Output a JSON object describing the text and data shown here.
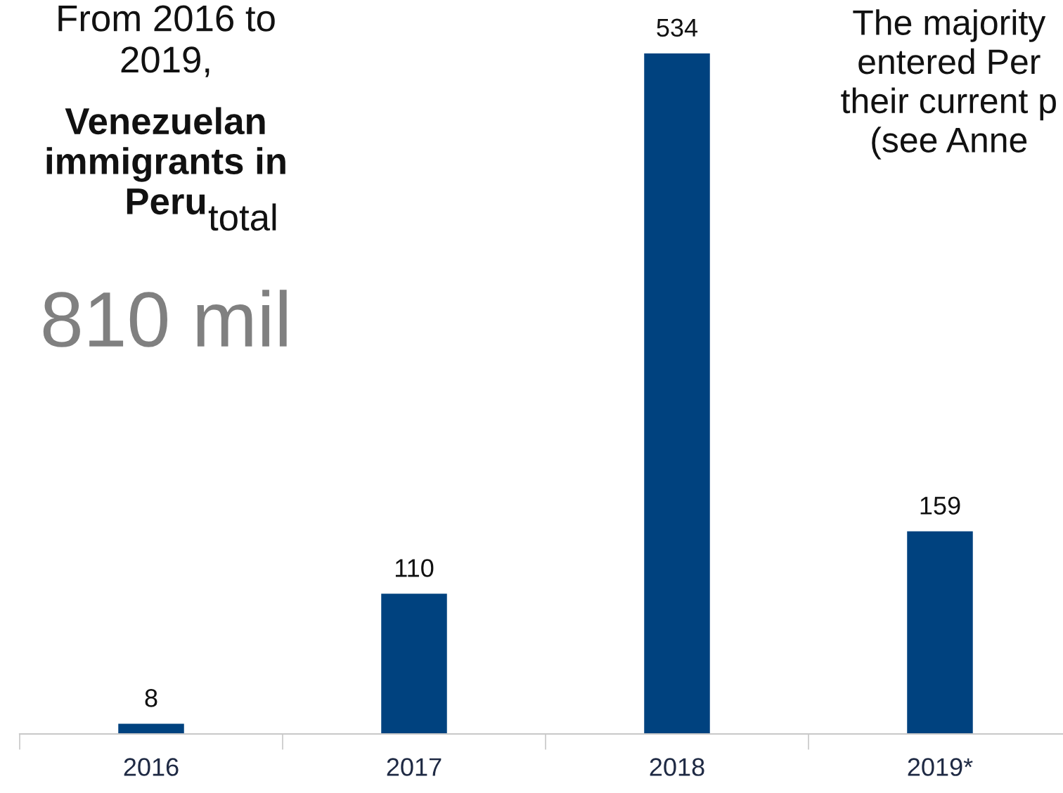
{
  "chart_data": {
    "type": "bar",
    "categories": [
      "2016",
      "2017",
      "2018",
      "2019*"
    ],
    "values": [
      8,
      110,
      534,
      159
    ],
    "color": "#00427f",
    "data_labels": true,
    "grid": false,
    "legend": false,
    "tick_labels": "x",
    "annotations": [
      "From 2016 to\n2019,",
      "Venezuelan\nimmigrants in\nPeru",
      "total",
      "810 mil",
      "The majority\nentered Per\ntheir current p\n(see Anne"
    ]
  }
}
